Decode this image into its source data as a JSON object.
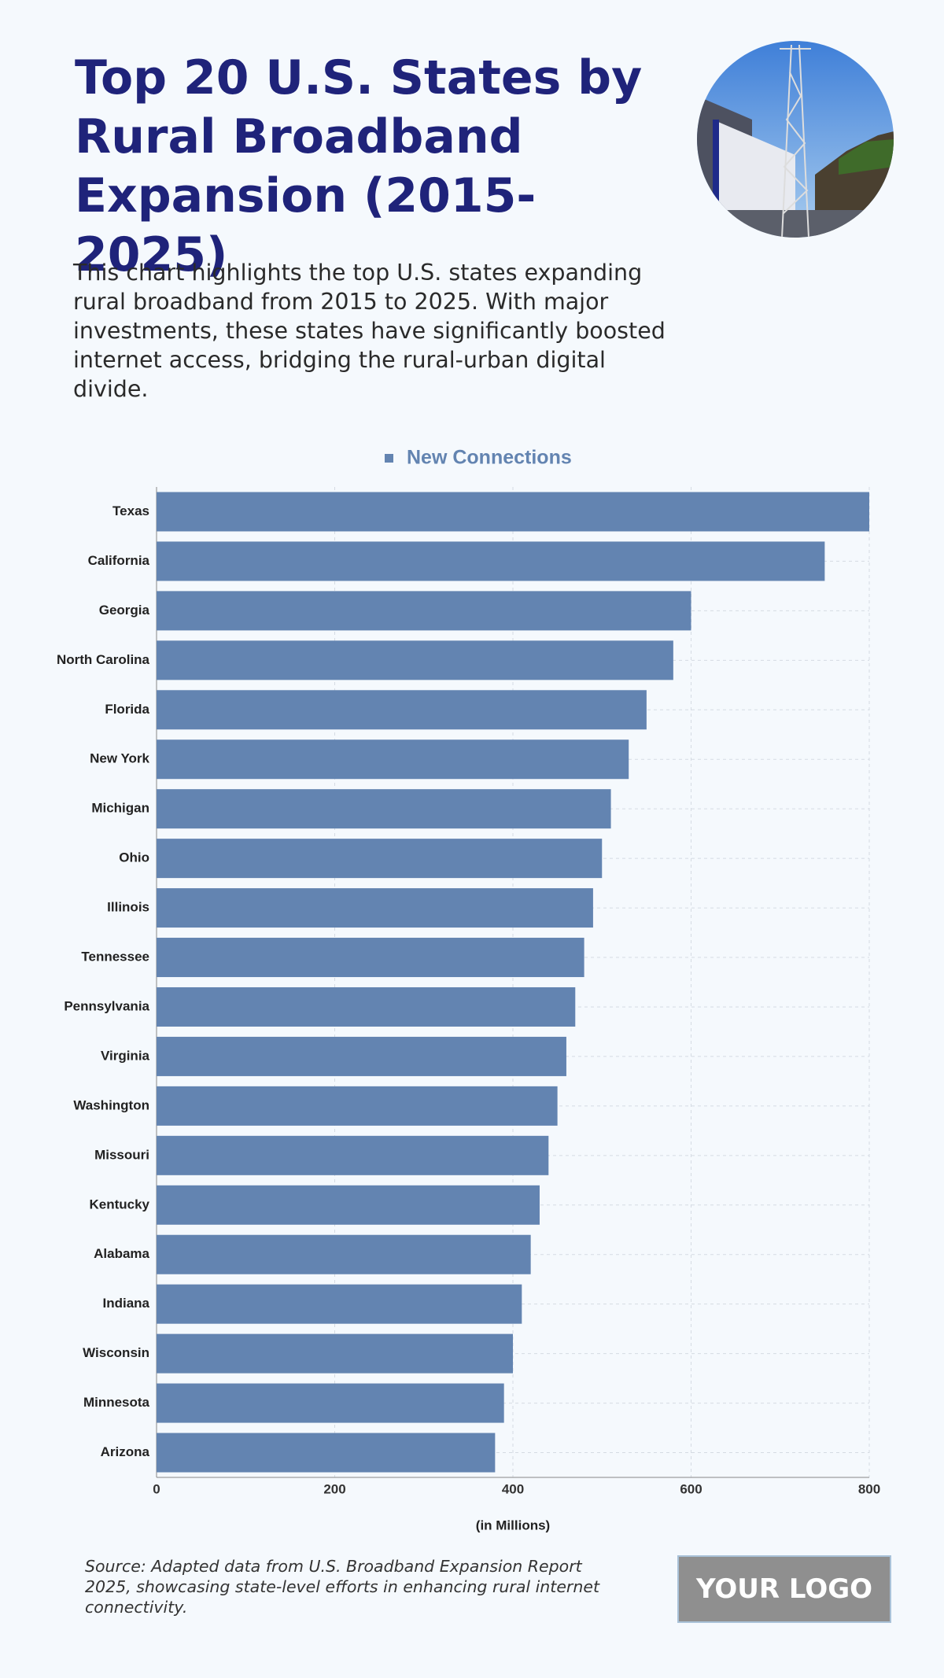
{
  "header": {
    "title": "Top 20 U.S. States by Rural Broadband Expansion (2015-2025)",
    "description": "This chart highlights the top U.S. states expanding rural broadband from 2015 to 2025. With major investments, these states have significantly boosted internet access, bridging the rural-urban digital divide."
  },
  "chart_data": {
    "type": "bar",
    "orientation": "horizontal",
    "categories": [
      "Texas",
      "California",
      "Georgia",
      "North Carolina",
      "Florida",
      "New York",
      "Michigan",
      "Ohio",
      "Illinois",
      "Tennessee",
      "Pennsylvania",
      "Virginia",
      "Washington",
      "Missouri",
      "Kentucky",
      "Alabama",
      "Indiana",
      "Wisconsin",
      "Minnesota",
      "Arizona"
    ],
    "series": [
      {
        "name": "New Connections",
        "color": "#6384b1",
        "values": [
          800,
          750,
          600,
          580,
          550,
          530,
          510,
          500,
          490,
          480,
          470,
          460,
          450,
          440,
          430,
          420,
          410,
          400,
          390,
          380
        ]
      }
    ],
    "xlim": [
      0,
      800
    ],
    "xticks": [
      0,
      200,
      400,
      600,
      800
    ],
    "x_label": "(in Millions)",
    "grid": true
  },
  "footer": {
    "source": "Source: Adapted data from U.S. Broadband Expansion Report 2025, showcasing state-level efforts in enhancing rural internet connectivity.",
    "logo": "YOUR LOGO"
  }
}
